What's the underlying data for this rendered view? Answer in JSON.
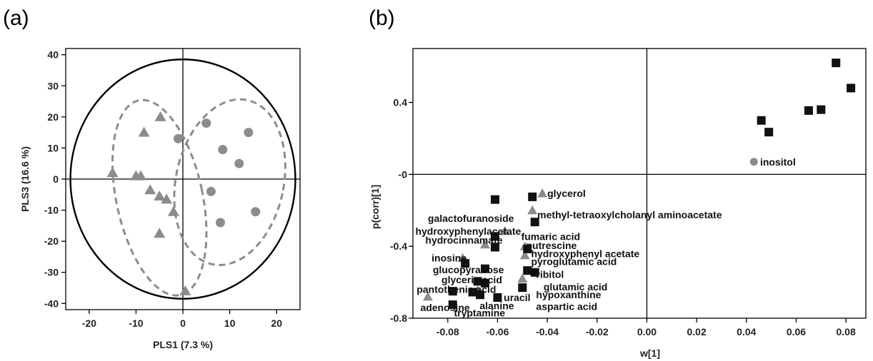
{
  "chart_data": [
    {
      "panel": "(a)",
      "type": "scatter",
      "xlabel": "PLS1 (7.3 %)",
      "ylabel": "PLS3 (16.6 %)",
      "xlim": [
        -25,
        25
      ],
      "ylim": [
        -42,
        42
      ],
      "xticks": [
        -20,
        -10,
        0,
        10,
        20
      ],
      "yticks": [
        -40,
        -30,
        -20,
        -10,
        0,
        10,
        20,
        30,
        40
      ],
      "grid": false,
      "reference_lines": {
        "x": 0,
        "y": 0
      },
      "colors": {
        "points": "#8c8c8c",
        "dashes": "#8c8c8c",
        "circle": "#000000"
      },
      "series": [
        {
          "marker": "triangle",
          "points": [
            [
              -4.8,
              20
            ],
            [
              -8.3,
              15
            ],
            [
              -15,
              2
            ],
            [
              -10,
              1
            ],
            [
              -9,
              1
            ],
            [
              -7,
              -3.5
            ],
            [
              -5,
              -5.5
            ],
            [
              -3.5,
              -6.5
            ],
            [
              -2,
              -10.5
            ],
            [
              -5,
              -17.5
            ],
            [
              0.5,
              -36
            ]
          ]
        },
        {
          "marker": "circle",
          "points": [
            [
              -1,
              13
            ],
            [
              5,
              18
            ],
            [
              14,
              15
            ],
            [
              8.5,
              9.5
            ],
            [
              12,
              5
            ],
            [
              6,
              -4
            ],
            [
              15.5,
              -10.5
            ],
            [
              8,
              -14
            ]
          ]
        }
      ]
    },
    {
      "panel": "(b)",
      "type": "scatter",
      "xlabel": "w[1]",
      "ylabel": "p(corr)[1]",
      "xlim": [
        -0.094,
        0.088
      ],
      "ylim": [
        -0.8,
        0.7
      ],
      "xticks": [
        "-0.08",
        "-0.06",
        "-0.04",
        "-0.02",
        "0.00",
        "0.02",
        "0.04",
        "0.06",
        "0.08"
      ],
      "yticks": [
        "0.4",
        "-0",
        "-0.4",
        "-0.8"
      ],
      "grid": false,
      "reference_lines": {
        "x": 0,
        "y": 0
      },
      "colors": {
        "square": "#111111",
        "triangle": "#8c8c8c",
        "circle": "#8c8c8c"
      },
      "squares": [
        [
          0.076,
          0.62
        ],
        [
          0.082,
          0.48
        ],
        [
          0.07,
          0.36
        ],
        [
          0.065,
          0.355
        ],
        [
          0.046,
          0.3
        ],
        [
          0.049,
          0.235
        ],
        [
          -0.061,
          -0.14
        ],
        [
          -0.046,
          -0.125
        ],
        [
          -0.045,
          -0.265
        ],
        [
          -0.061,
          -0.345
        ],
        [
          -0.061,
          -0.405
        ],
        [
          -0.048,
          -0.415
        ],
        [
          -0.073,
          -0.495
        ],
        [
          -0.065,
          -0.525
        ],
        [
          -0.048,
          -0.535
        ],
        [
          -0.045,
          -0.545
        ],
        [
          -0.068,
          -0.595
        ],
        [
          -0.065,
          -0.605
        ],
        [
          -0.05,
          -0.63
        ],
        [
          -0.078,
          -0.65
        ],
        [
          -0.07,
          -0.655
        ],
        [
          -0.067,
          -0.67
        ],
        [
          -0.06,
          -0.685
        ],
        [
          -0.078,
          -0.725
        ]
      ],
      "triangles": [
        [
          -0.042,
          -0.105
        ],
        [
          -0.046,
          -0.2
        ],
        [
          -0.057,
          -0.315
        ],
        [
          -0.065,
          -0.39
        ],
        [
          -0.049,
          -0.4
        ],
        [
          -0.049,
          -0.45
        ],
        [
          -0.074,
          -0.465
        ],
        [
          -0.088,
          -0.68
        ],
        [
          -0.068,
          -0.645
        ],
        [
          -0.05,
          -0.58
        ]
      ],
      "circles": [
        [
          0.043,
          0.07
        ]
      ],
      "labels": [
        {
          "text": "inositol",
          "x": 0.0455,
          "y": 0.07
        },
        {
          "text": "glycerol",
          "x": -0.04,
          "y": -0.105
        },
        {
          "text": "methyl-tetraoxylcholanyl aminoacetate",
          "x": -0.044,
          "y": -0.225
        },
        {
          "text": "galactofuranoside",
          "x": -0.088,
          "y": -0.245
        },
        {
          "text": "hydroxyphenylacetate",
          "x": -0.093,
          "y": -0.315
        },
        {
          "text": "hydrocinnamate",
          "x": -0.089,
          "y": -0.365
        },
        {
          "text": "fumaric acid",
          "x": -0.0505,
          "y": -0.345
        },
        {
          "text": "putrescine",
          "x": -0.0485,
          "y": -0.395
        },
        {
          "text": "hydroxyphenyl acetate",
          "x": -0.0465,
          "y": -0.44
        },
        {
          "text": "inosine",
          "x": -0.0865,
          "y": -0.465
        },
        {
          "text": "pyroglutamic acid",
          "x": -0.0465,
          "y": -0.485
        },
        {
          "text": "glucopyranose",
          "x": -0.086,
          "y": -0.53
        },
        {
          "text": "ribitol",
          "x": -0.0445,
          "y": -0.555
        },
        {
          "text": "glyceric acid",
          "x": -0.0825,
          "y": -0.585
        },
        {
          "text": "glutamic acid",
          "x": -0.0415,
          "y": -0.625
        },
        {
          "text": "pantothenic acid",
          "x": -0.0925,
          "y": -0.64
        },
        {
          "text": "hypoxanthine",
          "x": -0.0445,
          "y": -0.67
        },
        {
          "text": "uracil",
          "x": -0.0575,
          "y": -0.685
        },
        {
          "text": "alanine",
          "x": -0.0672,
          "y": -0.73
        },
        {
          "text": "aspartic acid",
          "x": -0.0445,
          "y": -0.735
        },
        {
          "text": "adenosine",
          "x": -0.091,
          "y": -0.74
        },
        {
          "text": "tryptamine",
          "x": -0.0775,
          "y": -0.77
        }
      ]
    }
  ]
}
